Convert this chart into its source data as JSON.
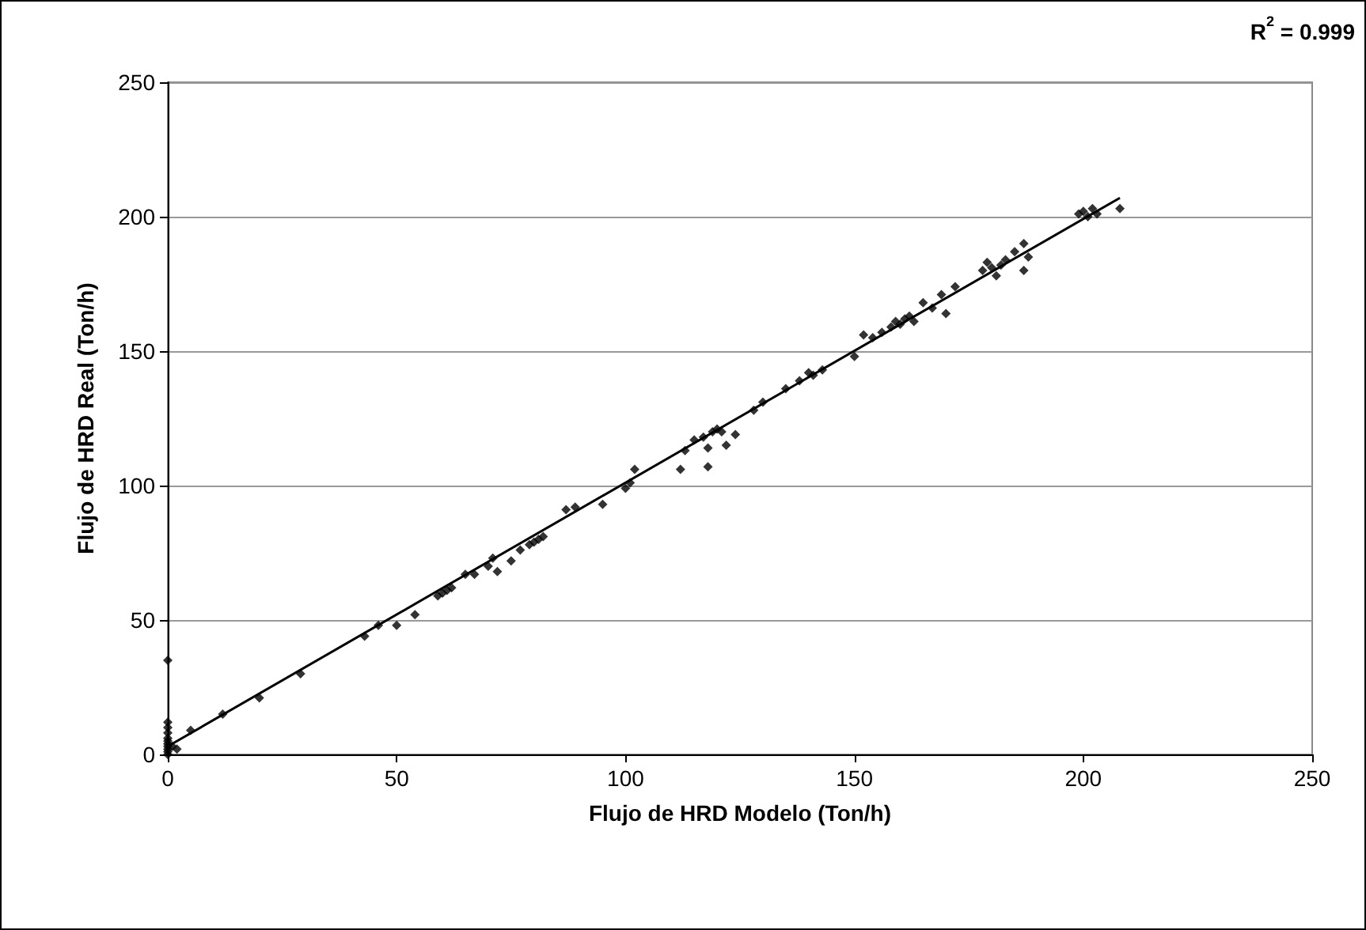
{
  "chart_data": {
    "type": "scatter",
    "xlabel": "Flujo de HRD Modelo (Ton/h)",
    "ylabel": "Flujo de HRD Real (Ton/h)",
    "annotations": [
      "R$^{2}$ = 0.999"
    ],
    "xlim": [
      0,
      250
    ],
    "xticks": [
      0,
      50,
      100,
      150,
      200,
      250
    ],
    "ylim": [
      0,
      250
    ],
    "yticks": [
      0,
      50,
      100,
      150,
      200,
      250
    ],
    "grid": "y",
    "marker": "diamond",
    "series": [
      {
        "color": "#000000",
        "x": [
          0,
          0,
          0,
          0,
          0,
          0,
          0,
          0,
          0,
          0,
          0,
          1,
          2,
          5,
          12,
          20,
          29,
          43,
          46,
          50,
          54,
          59,
          60,
          61,
          62,
          65,
          67,
          70,
          71,
          72,
          75,
          77,
          79,
          80,
          81,
          82,
          87,
          89,
          95,
          100,
          101,
          102,
          112,
          113,
          115,
          117,
          118,
          118,
          119,
          120,
          121,
          122,
          124,
          128,
          130,
          135,
          138,
          140,
          141,
          143,
          150,
          152,
          154,
          156,
          158,
          159,
          160,
          161,
          162,
          163,
          165,
          167,
          169,
          170,
          172,
          178,
          179,
          180,
          181,
          182,
          183,
          185,
          187,
          188,
          187,
          199,
          200,
          201,
          202,
          203,
          208
        ],
        "values": [
          35,
          12,
          10,
          8,
          6,
          5,
          4,
          3,
          2,
          1,
          0,
          3,
          2,
          9,
          15,
          21,
          30,
          44,
          48,
          48,
          52,
          59,
          60,
          61,
          62,
          67,
          67,
          70,
          73,
          68,
          72,
          76,
          78,
          79,
          80,
          81,
          91,
          92,
          93,
          99,
          101,
          106,
          106,
          113,
          117,
          118,
          107,
          114,
          120,
          121,
          120,
          115,
          119,
          128,
          131,
          136,
          139,
          142,
          141,
          143,
          148,
          156,
          155,
          157,
          159,
          161,
          160,
          162,
          163,
          161,
          168,
          166,
          171,
          164,
          174,
          180,
          183,
          181,
          178,
          182,
          184,
          187,
          190,
          185,
          180,
          201,
          202,
          200,
          203,
          201,
          203
        ]
      },
      {
        "type": "line",
        "color": "#000000",
        "marker": "none",
        "line_style": "solid",
        "x": [
          0,
          208
        ],
        "values": [
          3,
          207
        ]
      }
    ]
  }
}
